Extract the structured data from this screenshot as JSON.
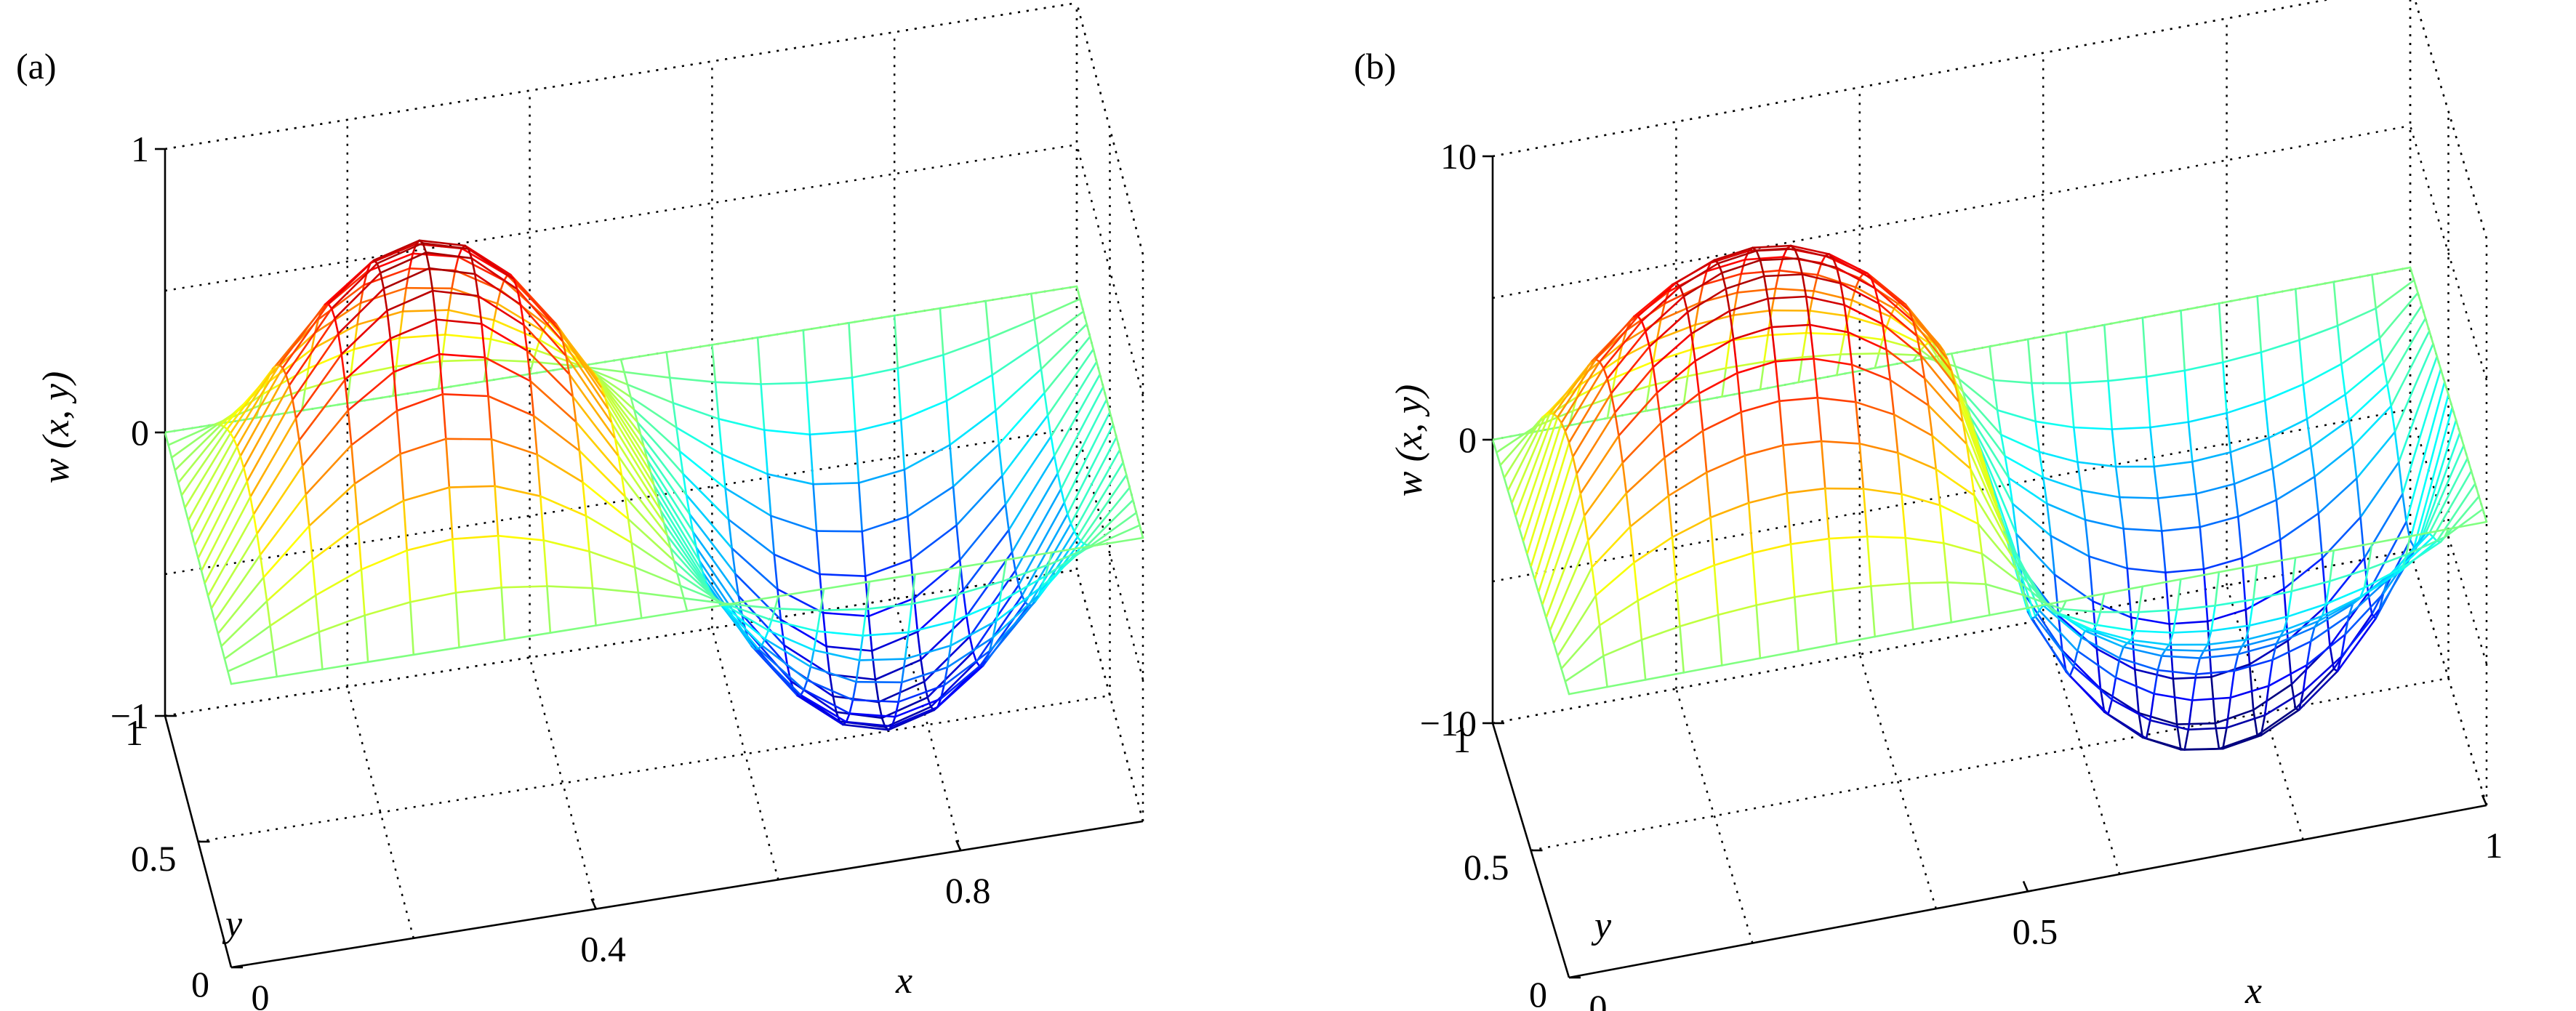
{
  "chart_data": [
    {
      "panel_label": "(a)",
      "type": "surface",
      "xlabel": "x",
      "ylabel": "y",
      "zlabel": "w (x, y)",
      "xlim": [
        0,
        1
      ],
      "ylim": [
        0,
        1
      ],
      "zlim": [
        -1,
        1
      ],
      "x_ticks": [
        0.4,
        0.8
      ],
      "x_tick_labels": [
        "0.4",
        "0.8"
      ],
      "y_ticks": [
        0,
        0.5,
        1
      ],
      "y_tick_labels": [
        "0",
        "0.5",
        "1"
      ],
      "z_ticks": [
        -1,
        0,
        1
      ],
      "z_tick_labels": [
        "−1",
        "0",
        "1"
      ],
      "x_origin_label": "0",
      "grid": true,
      "colormap": "jet",
      "mesh": [
        21,
        21
      ],
      "surface": "w(x,y) = sin(2πx)·sin(πy)",
      "z_range_shown": [
        -0.95,
        0.95
      ]
    },
    {
      "panel_label": "(b)",
      "type": "surface",
      "xlabel": "x",
      "ylabel": "y",
      "zlabel": "w (x, y)",
      "xlim": [
        0,
        1
      ],
      "ylim": [
        0,
        1
      ],
      "zlim": [
        -10,
        10
      ],
      "x_ticks": [
        0.5,
        1
      ],
      "x_tick_labels": [
        "0.5",
        "1"
      ],
      "y_ticks": [
        0,
        0.5,
        1
      ],
      "y_tick_labels": [
        "0",
        "0.5",
        "1"
      ],
      "z_ticks": [
        -10,
        0,
        10
      ],
      "z_tick_labels": [
        "−10",
        "0",
        "10"
      ],
      "x_origin_label": "0",
      "grid": true,
      "colormap": "jet",
      "mesh": [
        25,
        21
      ],
      "surface": "w(x,y) ≈ 10·sin(2πx)·sin(πy) (flattened crests, double-dip trough)",
      "z_range_shown": [
        -9.3,
        9.3
      ]
    }
  ]
}
